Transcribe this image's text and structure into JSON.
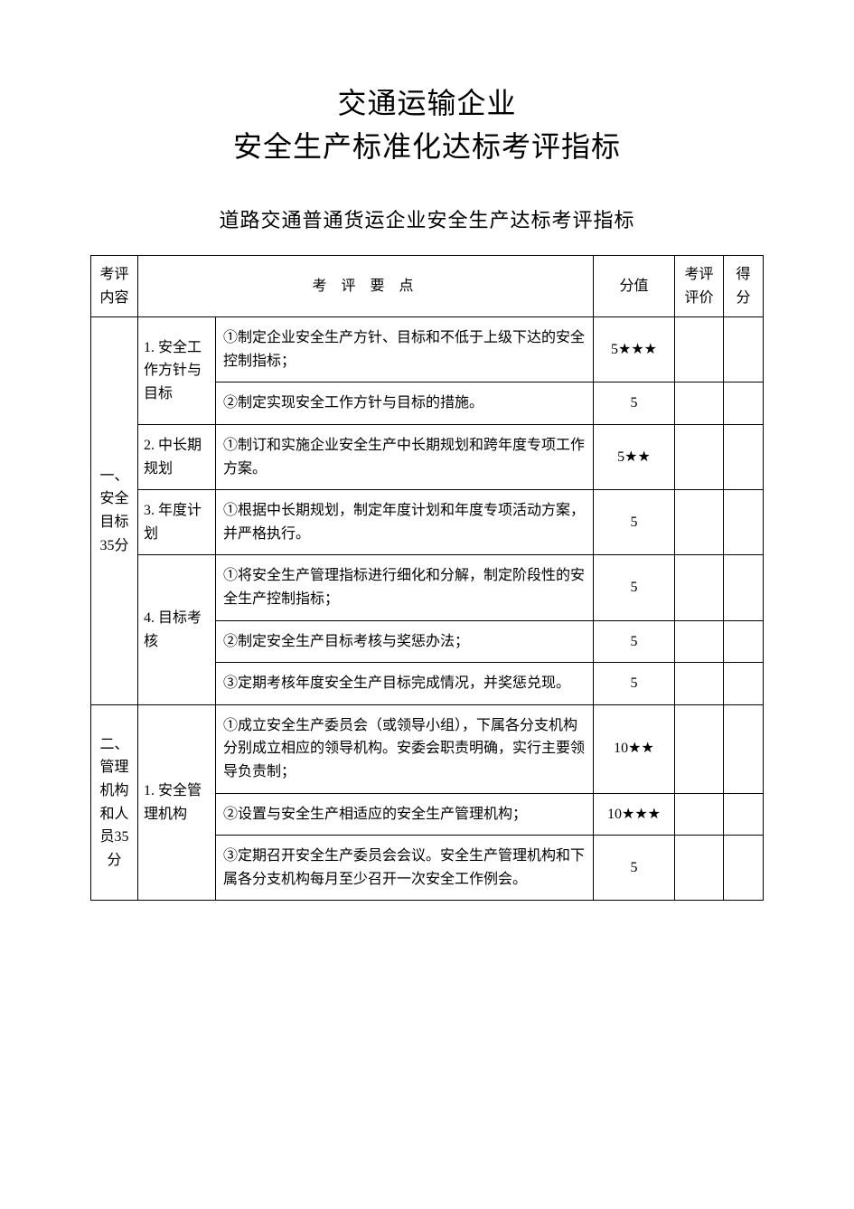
{
  "title_line1": "交通运输企业",
  "title_line2": "安全生产标准化达标考评指标",
  "subtitle": "道路交通普通货运企业安全生产达标考评指标",
  "table": {
    "headers": {
      "section": "考评内容",
      "points": "考 评 要 点",
      "score": "分值",
      "eval": "考评评价",
      "got": "得分"
    },
    "sections": [
      {
        "label": "一、安全目标35分",
        "subs": [
          {
            "label": "1. 安全工作方针与目标",
            "items": [
              {
                "text": "①制定企业安全生产方针、目标和不低于上级下达的安全控制指标；",
                "score": "5★★★"
              },
              {
                "text": "②制定实现安全工作方针与目标的措施。",
                "score": "5"
              }
            ]
          },
          {
            "label": "2. 中长期规划",
            "items": [
              {
                "text": "①制订和实施企业安全生产中长期规划和跨年度专项工作方案。",
                "score": "5★★"
              }
            ]
          },
          {
            "label": "3. 年度计划",
            "items": [
              {
                "text": "①根据中长期规划，制定年度计划和年度专项活动方案，并严格执行。",
                "score": "5"
              }
            ]
          },
          {
            "label": "4. 目标考核",
            "items": [
              {
                "text": "①将安全生产管理指标进行细化和分解，制定阶段性的安全生产控制指标；",
                "score": "5"
              },
              {
                "text": "②制定安全生产目标考核与奖惩办法；",
                "score": "5"
              },
              {
                "text": "③定期考核年度安全生产目标完成情况，并奖惩兑现。",
                "score": "5"
              }
            ]
          }
        ]
      },
      {
        "label": "二、管理机构和人员35分",
        "subs": [
          {
            "label": "1. 安全管理机构",
            "items": [
              {
                "text": "①成立安全生产委员会（或领导小组），下属各分支机构分别成立相应的领导机构。安委会职责明确，实行主要领导负责制；",
                "score": "10★★"
              },
              {
                "text": "②设置与安全生产相适应的安全生产管理机构；",
                "score": "10★★★"
              },
              {
                "text": "③定期召开安全生产委员会会议。安全生产管理机构和下属各分支机构每月至少召开一次安全工作例会。",
                "score": "5"
              }
            ]
          }
        ]
      }
    ]
  },
  "style": {
    "page_bg": "#ffffff",
    "text_color": "#000000",
    "border_color": "#000000",
    "title_fontsize": 32,
    "subtitle_fontsize": 22,
    "body_fontsize": 16,
    "font_family": "SimSun"
  }
}
